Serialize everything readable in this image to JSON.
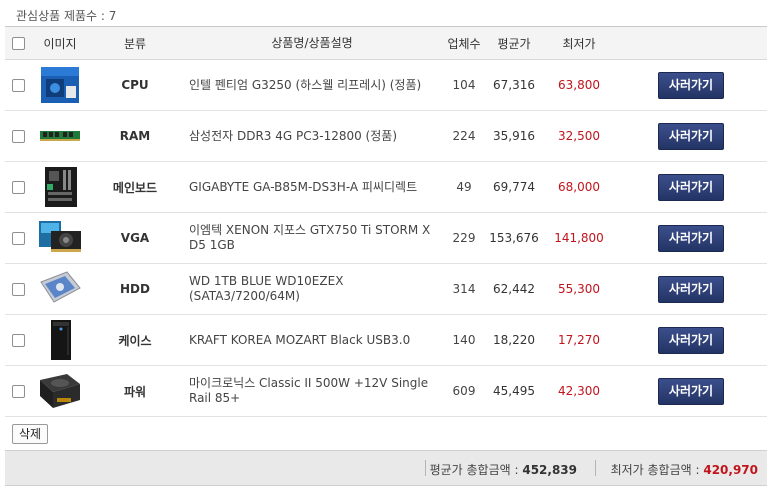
{
  "header": {
    "count_label": "관심상품 제품수 : 7"
  },
  "columns": {
    "image": "이미지",
    "category": "분류",
    "name": "상품명/상품설명",
    "shops": "업체수",
    "avg": "평균가",
    "lowest": "최저가"
  },
  "rows": [
    {
      "category": "CPU",
      "name": "인텔 펜티엄 G3250 (하스웰 리프레시) (정품)",
      "shops": "104",
      "avg": "67,316",
      "lowest": "63,800",
      "buy_label": "사러가기",
      "image_icon": "cpu-box-icon"
    },
    {
      "category": "RAM",
      "name": "삼성전자 DDR3 4G PC3-12800 (정품)",
      "shops": "224",
      "avg": "35,916",
      "lowest": "32,500",
      "buy_label": "사러가기",
      "image_icon": "ram-stick-icon"
    },
    {
      "category": "메인보드",
      "name": "GIGABYTE GA-B85M-DS3H-A 피씨디렉트",
      "shops": "49",
      "avg": "69,774",
      "lowest": "68,000",
      "buy_label": "사러가기",
      "image_icon": "motherboard-icon"
    },
    {
      "category": "VGA",
      "name": "이엠텍 XENON 지포스 GTX750 Ti STORM X D5 1GB",
      "shops": "229",
      "avg": "153,676",
      "lowest": "141,800",
      "buy_label": "사러가기",
      "image_icon": "graphics-card-icon"
    },
    {
      "category": "HDD",
      "name": "WD 1TB BLUE WD10EZEX (SATA3/7200/64M)",
      "shops": "314",
      "avg": "62,442",
      "lowest": "55,300",
      "buy_label": "사러가기",
      "image_icon": "hard-drive-icon"
    },
    {
      "category": "케이스",
      "name": "KRAFT KOREA MOZART Black USB3.0",
      "shops": "140",
      "avg": "18,220",
      "lowest": "17,270",
      "buy_label": "사러가기",
      "image_icon": "pc-case-icon"
    },
    {
      "category": "파워",
      "name": "마이크로닉스 Classic II 500W +12V Single Rail 85+",
      "shops": "609",
      "avg": "45,495",
      "lowest": "42,300",
      "buy_label": "사러가기",
      "image_icon": "power-supply-icon"
    }
  ],
  "actions": {
    "delete_label": "삭제"
  },
  "footer": {
    "avg_total_label": "평균가 총합금액 : ",
    "avg_total_value": "452,839",
    "low_total_label": "최저가 총합금액 : ",
    "low_total_value": "420,970"
  },
  "colors": {
    "accent_red": "#c0151c",
    "button_navy": "#2d3f74"
  }
}
